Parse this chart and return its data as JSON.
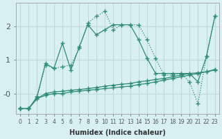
{
  "xlabel": "Humidex (Indice chaleur)",
  "x_values": [
    0,
    1,
    2,
    3,
    4,
    5,
    6,
    7,
    8,
    9,
    10,
    11,
    12,
    13,
    14,
    15,
    16,
    17,
    18,
    19,
    20,
    21,
    22,
    23
  ],
  "line1_y": [
    -0.45,
    -0.45,
    -0.15,
    -0.05,
    0.0,
    0.0,
    0.05,
    0.07,
    0.1,
    0.12,
    0.15,
    0.17,
    0.2,
    0.22,
    0.27,
    0.3,
    0.35,
    0.4,
    0.45,
    0.5,
    0.55,
    0.6,
    0.65,
    0.72
  ],
  "line2_y": [
    -0.45,
    -0.45,
    -0.15,
    0.0,
    0.05,
    0.07,
    0.1,
    0.12,
    0.15,
    0.18,
    0.22,
    0.25,
    0.28,
    0.3,
    0.35,
    0.38,
    0.42,
    0.45,
    0.5,
    0.55,
    0.6,
    0.62,
    0.65,
    0.7
  ],
  "line3_y": [
    -0.45,
    -0.45,
    -0.1,
    0.9,
    0.75,
    1.5,
    0.7,
    1.4,
    2.05,
    1.75,
    1.9,
    2.05,
    2.05,
    2.05,
    1.6,
    1.05,
    0.6,
    0.6,
    0.6,
    0.6,
    0.6,
    0.35,
    1.1,
    2.3
  ],
  "line4_y": [
    -0.45,
    -0.45,
    -0.1,
    0.85,
    0.75,
    0.8,
    0.85,
    1.35,
    2.1,
    2.3,
    2.45,
    1.9,
    2.05,
    2.05,
    2.05,
    1.6,
    1.05,
    0.55,
    0.55,
    0.6,
    0.35,
    -0.3,
    1.1,
    2.3
  ],
  "color": "#2e8b74",
  "bg_color": "#d8f0f0",
  "grid_color": "#c0dada",
  "ylim": [
    -0.6,
    2.7
  ],
  "yticks": [
    0,
    1,
    2
  ],
  "ytick_labels": [
    "-0",
    "1",
    "2"
  ]
}
